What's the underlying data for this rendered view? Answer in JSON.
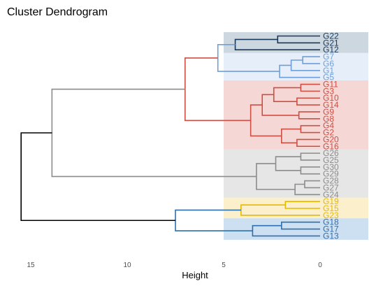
{
  "chart_data": {
    "type": "dendrogram",
    "title": "Cluster Dendrogram",
    "xlabel": "Height",
    "x_ticks": [
      15,
      10,
      5,
      0
    ],
    "xlim": [
      16.2,
      -2.5
    ],
    "leaves_top_to_bottom": [
      "G22",
      "G21",
      "G12",
      "G7",
      "G6",
      "G1",
      "G5",
      "G11",
      "G3",
      "G10",
      "G14",
      "G9",
      "G8",
      "G4",
      "G2",
      "G20",
      "G16",
      "G26",
      "G25",
      "G30",
      "G29",
      "G28",
      "G27",
      "G24",
      "G19",
      "G15",
      "G23",
      "G18",
      "G17",
      "G13"
    ],
    "clusters": [
      {
        "leaves": [
          "G22",
          "G21",
          "G12"
        ],
        "color": "#1a3a5c",
        "fill": "#cdd7e0"
      },
      {
        "leaves": [
          "G7",
          "G6",
          "G1",
          "G5"
        ],
        "color": "#6f9fd8",
        "fill": "#e6eef9"
      },
      {
        "leaves": [
          "G11",
          "G3",
          "G10",
          "G14",
          "G9",
          "G8",
          "G4",
          "G2",
          "G20",
          "G16"
        ],
        "color": "#cd4f44",
        "fill": "#f5d8d5"
      },
      {
        "leaves": [
          "G26",
          "G25",
          "G30",
          "G29",
          "G28",
          "G27",
          "G24"
        ],
        "color": "#8c8c8c",
        "fill": "#e6e6e6"
      },
      {
        "leaves": [
          "G19",
          "G15",
          "G23"
        ],
        "color": "#e7b800",
        "fill": "#fcf0cc"
      },
      {
        "leaves": [
          "G18",
          "G17",
          "G13"
        ],
        "color": "#2e6fae",
        "fill": "#cde0f2"
      }
    ],
    "branch_colors": {
      "upper": "#000000",
      "grey_link": "#8c8c8c"
    },
    "merges": [
      {
        "id": "m1",
        "children": [
          "G22",
          "G21"
        ],
        "height": 2.2,
        "color": "#1a3a5c"
      },
      {
        "id": "m2",
        "children": [
          "m1",
          "G12"
        ],
        "height": 4.4,
        "color": "#1a3a5c"
      },
      {
        "id": "m3",
        "children": [
          "G7",
          "G6"
        ],
        "height": 0.9,
        "color": "#6f9fd8"
      },
      {
        "id": "m4",
        "children": [
          "m3",
          "G1"
        ],
        "height": 1.5,
        "color": "#6f9fd8"
      },
      {
        "id": "m5",
        "children": [
          "m4",
          "G5"
        ],
        "height": 2.1,
        "color": "#6f9fd8"
      },
      {
        "id": "m6",
        "children": [
          "m2",
          "m5"
        ],
        "height": 5.3,
        "color": "#6f9fd8"
      },
      {
        "id": "m7",
        "children": [
          "G11",
          "G3"
        ],
        "height": 1.0,
        "color": "#cd4f44"
      },
      {
        "id": "m8",
        "children": [
          "G10",
          "G14"
        ],
        "height": 1.2,
        "color": "#cd4f44"
      },
      {
        "id": "m9",
        "children": [
          "m7",
          "m8"
        ],
        "height": 2.4,
        "color": "#cd4f44"
      },
      {
        "id": "m10",
        "children": [
          "G9",
          "G8"
        ],
        "height": 1.1,
        "color": "#cd4f44"
      },
      {
        "id": "m11",
        "children": [
          "m9",
          "m10"
        ],
        "height": 3.0,
        "color": "#cd4f44"
      },
      {
        "id": "m12",
        "children": [
          "G4",
          "G2"
        ],
        "height": 1.0,
        "color": "#cd4f44"
      },
      {
        "id": "m13",
        "children": [
          "G20",
          "G16"
        ],
        "height": 1.2,
        "color": "#cd4f44"
      },
      {
        "id": "m14",
        "children": [
          "m12",
          "m13"
        ],
        "height": 2.0,
        "color": "#cd4f44"
      },
      {
        "id": "m15",
        "children": [
          "m11",
          "m14"
        ],
        "height": 3.6,
        "color": "#cd4f44"
      },
      {
        "id": "m16",
        "children": [
          "m6",
          "m15"
        ],
        "height": 7.0,
        "color": "#cd4f44"
      },
      {
        "id": "m17",
        "children": [
          "G26",
          "G25"
        ],
        "height": 1.0,
        "color": "#8c8c8c"
      },
      {
        "id": "m18",
        "children": [
          "G30",
          "G29"
        ],
        "height": 1.0,
        "color": "#8c8c8c"
      },
      {
        "id": "m19",
        "children": [
          "m17",
          "m18"
        ],
        "height": 2.3,
        "color": "#8c8c8c"
      },
      {
        "id": "m20",
        "children": [
          "G28",
          "G27"
        ],
        "height": 0.8,
        "color": "#8c8c8c"
      },
      {
        "id": "m21",
        "children": [
          "m20",
          "G24"
        ],
        "height": 1.3,
        "color": "#8c8c8c"
      },
      {
        "id": "m22",
        "children": [
          "m19",
          "m21"
        ],
        "height": 3.3,
        "color": "#8c8c8c"
      },
      {
        "id": "m23",
        "children": [
          "m16",
          "m22"
        ],
        "height": 13.9,
        "color": "#8c8c8c"
      },
      {
        "id": "m24",
        "children": [
          "G19",
          "G15"
        ],
        "height": 1.8,
        "color": "#e7b800"
      },
      {
        "id": "m25",
        "children": [
          "m24",
          "G23"
        ],
        "height": 4.1,
        "color": "#e7b800"
      },
      {
        "id": "m26",
        "children": [
          "G18",
          "G17"
        ],
        "height": 2.0,
        "color": "#2e6fae"
      },
      {
        "id": "m27",
        "children": [
          "m26",
          "G13"
        ],
        "height": 3.5,
        "color": "#2e6fae"
      },
      {
        "id": "m28",
        "children": [
          "m25",
          "m27"
        ],
        "height": 7.5,
        "color": "#2e6fae"
      },
      {
        "id": "m29",
        "children": [
          "m23",
          "m28"
        ],
        "height": 15.5,
        "color": "#000000"
      }
    ],
    "legend": "none",
    "grid": false
  }
}
